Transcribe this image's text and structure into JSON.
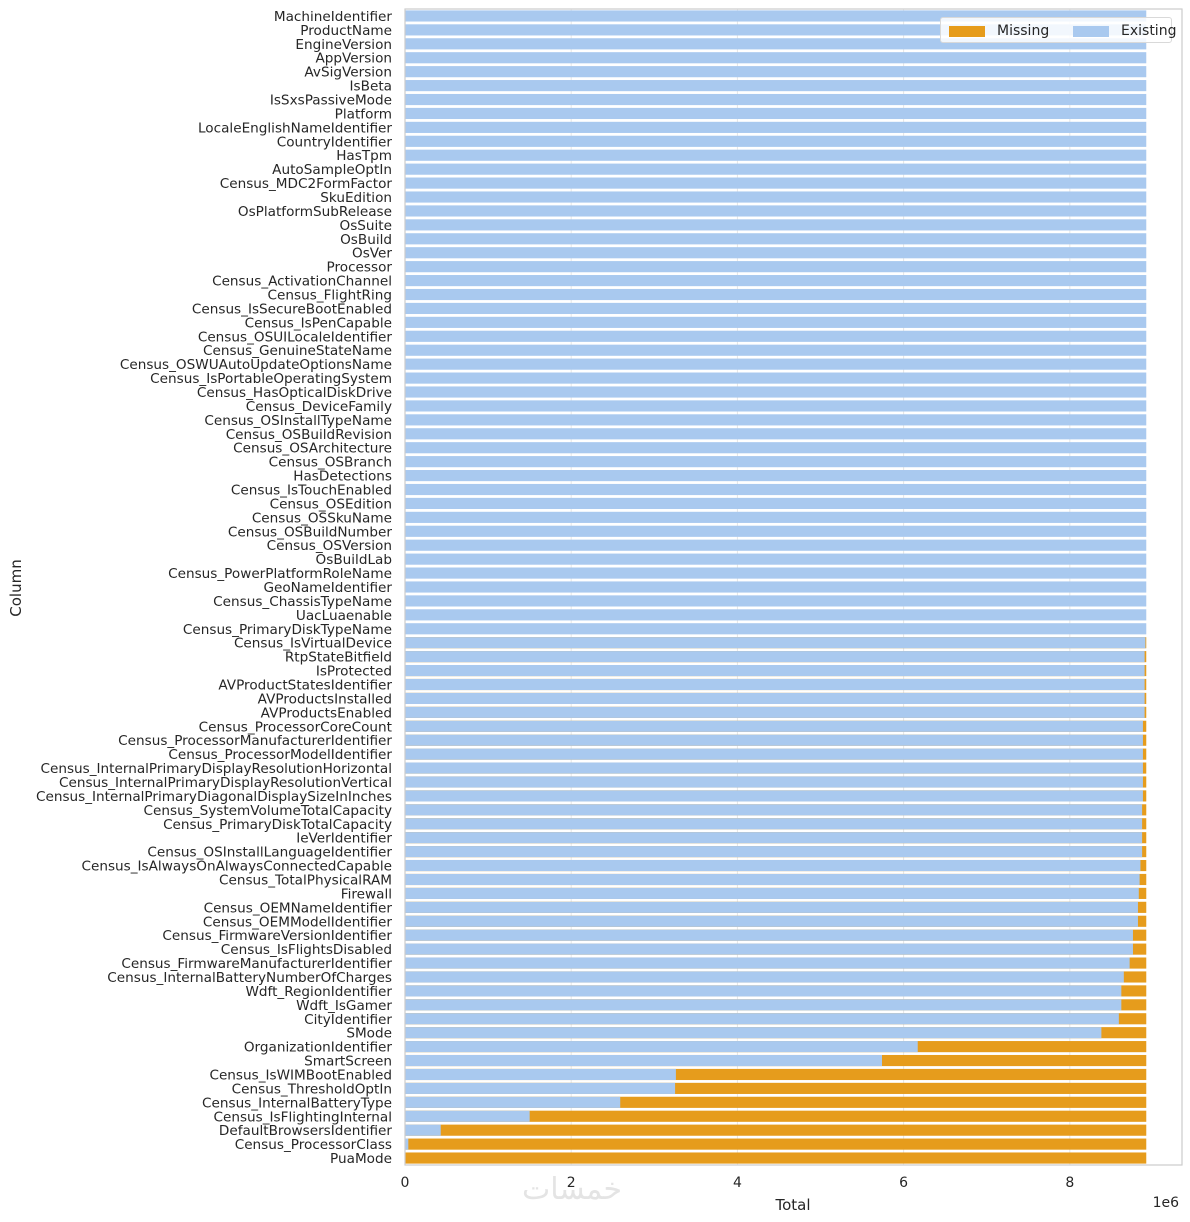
{
  "colors": {
    "missing": "#e69c1c",
    "existing": "#a9c9ef",
    "grid": "#e6e6e6",
    "frame": "#cccccc"
  },
  "watermark": "خمسات",
  "chart_data": {
    "type": "bar",
    "orientation": "horizontal",
    "stacked": true,
    "xlabel": "Total",
    "ylabel": "Column",
    "x_offset_label": "1e6",
    "xlim": [
      0,
      9.35
    ],
    "xticks": [
      0,
      2,
      4,
      6,
      8
    ],
    "xtick_labels": [
      "0",
      "2",
      "4",
      "6",
      "8"
    ],
    "grid": "vertical",
    "legend_position": "top-right",
    "total": 8.92,
    "categories": [
      "MachineIdentifier",
      "ProductName",
      "EngineVersion",
      "AppVersion",
      "AvSigVersion",
      "IsBeta",
      "IsSxsPassiveMode",
      "Platform",
      "LocaleEnglishNameIdentifier",
      "CountryIdentifier",
      "HasTpm",
      "AutoSampleOptIn",
      "Census_MDC2FormFactor",
      "SkuEdition",
      "OsPlatformSubRelease",
      "OsSuite",
      "OsBuild",
      "OsVer",
      "Processor",
      "Census_ActivationChannel",
      "Census_FlightRing",
      "Census_IsSecureBootEnabled",
      "Census_IsPenCapable",
      "Census_OSUILocaleIdentifier",
      "Census_GenuineStateName",
      "Census_OSWUAutoUpdateOptionsName",
      "Census_IsPortableOperatingSystem",
      "Census_HasOpticalDiskDrive",
      "Census_DeviceFamily",
      "Census_OSInstallTypeName",
      "Census_OSBuildRevision",
      "Census_OSArchitecture",
      "Census_OSBranch",
      "HasDetections",
      "Census_IsTouchEnabled",
      "Census_OSEdition",
      "Census_OSSkuName",
      "Census_OSBuildNumber",
      "Census_OSVersion",
      "OsBuildLab",
      "Census_PowerPlatformRoleName",
      "GeoNameIdentifier",
      "Census_ChassisTypeName",
      "UacLuaenable",
      "Census_PrimaryDiskTypeName",
      "Census_IsVirtualDevice",
      "RtpStateBitfield",
      "IsProtected",
      "AVProductStatesIdentifier",
      "AVProductsInstalled",
      "AVProductsEnabled",
      "Census_ProcessorCoreCount",
      "Census_ProcessorManufacturerIdentifier",
      "Census_ProcessorModelIdentifier",
      "Census_InternalPrimaryDisplayResolutionHorizontal",
      "Census_InternalPrimaryDisplayResolutionVertical",
      "Census_InternalPrimaryDiagonalDisplaySizeInInches",
      "Census_SystemVolumeTotalCapacity",
      "Census_PrimaryDiskTotalCapacity",
      "IeVerIdentifier",
      "Census_OSInstallLanguageIdentifier",
      "Census_IsAlwaysOnAlwaysConnectedCapable",
      "Census_TotalPhysicalRAM",
      "Firewall",
      "Census_OEMNameIdentifier",
      "Census_OEMModelIdentifier",
      "Census_FirmwareVersionIdentifier",
      "Census_IsFlightsDisabled",
      "Census_FirmwareManufacturerIdentifier",
      "Census_InternalBatteryNumberOfCharges",
      "Wdft_RegionIdentifier",
      "Wdft_IsGamer",
      "CityIdentifier",
      "SMode",
      "OrganizationIdentifier",
      "SmartScreen",
      "Census_IsWIMBootEnabled",
      "Census_ThresholdOptIn",
      "Census_InternalBatteryType",
      "Census_IsFlightingInternal",
      "DefaultBrowsersIdentifier",
      "Census_ProcessorClass",
      "PuaMode"
    ],
    "series": [
      {
        "name": "Missing",
        "values": [
          0,
          0,
          0,
          0,
          0,
          0,
          0,
          0,
          0,
          0,
          0,
          0,
          0,
          0,
          0,
          0,
          0,
          0,
          0,
          0,
          0,
          0,
          0,
          0,
          0,
          0,
          0,
          0,
          0,
          0,
          0,
          0,
          0,
          0,
          0,
          0,
          0,
          0,
          0,
          0,
          0,
          0,
          0,
          0,
          0,
          0.01,
          0.02,
          0.02,
          0.02,
          0.02,
          0.02,
          0.04,
          0.04,
          0.04,
          0.04,
          0.04,
          0.04,
          0.05,
          0.05,
          0.05,
          0.05,
          0.07,
          0.08,
          0.09,
          0.1,
          0.1,
          0.16,
          0.16,
          0.2,
          0.27,
          0.3,
          0.3,
          0.33,
          0.54,
          2.75,
          3.18,
          5.66,
          5.67,
          6.33,
          7.42,
          8.49,
          8.88,
          8.92
        ]
      },
      {
        "name": "Existing",
        "values": [
          8.92,
          8.92,
          8.92,
          8.92,
          8.92,
          8.92,
          8.92,
          8.92,
          8.92,
          8.92,
          8.92,
          8.92,
          8.92,
          8.92,
          8.92,
          8.92,
          8.92,
          8.92,
          8.92,
          8.92,
          8.92,
          8.92,
          8.92,
          8.92,
          8.92,
          8.92,
          8.92,
          8.92,
          8.92,
          8.92,
          8.92,
          8.92,
          8.92,
          8.92,
          8.92,
          8.92,
          8.92,
          8.92,
          8.92,
          8.92,
          8.92,
          8.92,
          8.92,
          8.92,
          8.92,
          8.91,
          8.9,
          8.9,
          8.9,
          8.9,
          8.9,
          8.88,
          8.88,
          8.88,
          8.88,
          8.88,
          8.88,
          8.87,
          8.87,
          8.87,
          8.87,
          8.85,
          8.84,
          8.83,
          8.82,
          8.82,
          8.76,
          8.76,
          8.72,
          8.65,
          8.62,
          8.62,
          8.59,
          8.38,
          6.17,
          5.74,
          3.26,
          3.25,
          2.59,
          1.5,
          0.43,
          0.04,
          0
        ]
      }
    ]
  }
}
